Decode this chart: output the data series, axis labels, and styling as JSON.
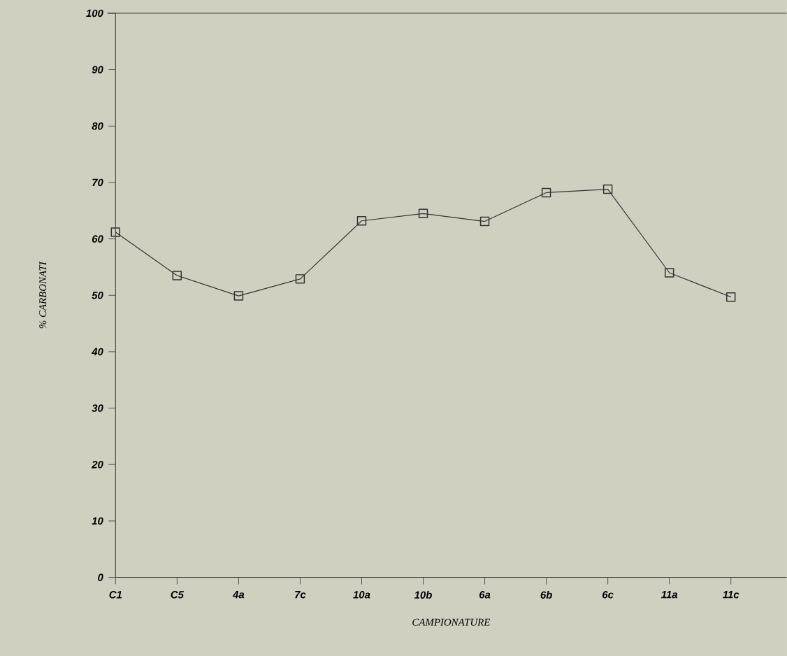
{
  "chart_data": {
    "type": "line",
    "xlabel": "CAMPIONATURE",
    "ylabel": "% CARBONATI",
    "categories": [
      "C1",
      "C5",
      "4a",
      "7c",
      "10a",
      "10b",
      "6a",
      "6b",
      "6c",
      "11a",
      "11c"
    ],
    "series": [
      {
        "color": "#333333",
        "values": [
          61.2,
          53.5,
          49.9,
          52.9,
          63.2,
          64.5,
          63.1,
          68.2,
          68.8,
          54.0,
          49.7
        ]
      }
    ],
    "ylim": [
      0,
      100
    ],
    "yticks": [
      0,
      10,
      20,
      30,
      40,
      50,
      60,
      70,
      80,
      90,
      100
    ],
    "marker": "square",
    "line_style": "solid",
    "grid": false
  }
}
